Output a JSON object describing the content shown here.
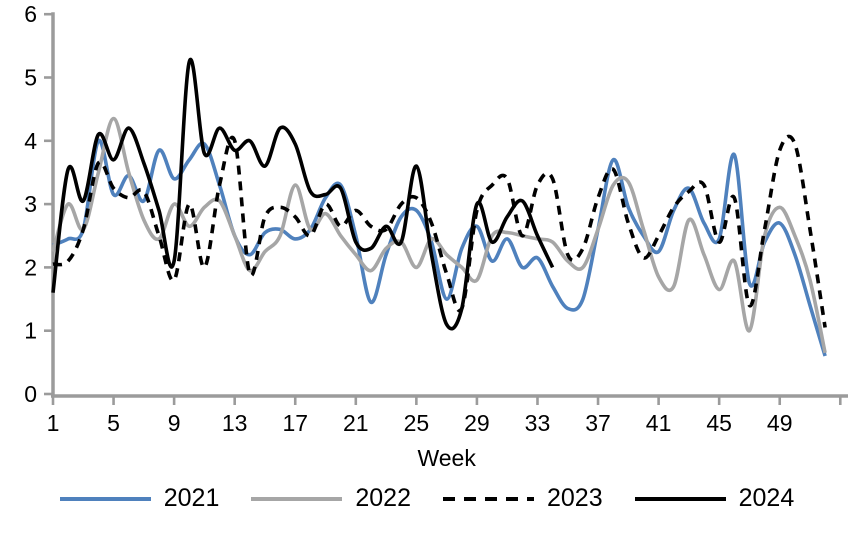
{
  "chart_data": {
    "type": "line",
    "title": "",
    "xlabel": "Week",
    "ylabel": "",
    "xlim": [
      1,
      52
    ],
    "ylim": [
      0,
      6
    ],
    "grid": false,
    "legend_position": "bottom",
    "y_ticks": [
      0,
      1,
      2,
      3,
      4,
      5,
      6
    ],
    "x_ticks": [
      1,
      5,
      9,
      13,
      17,
      21,
      25,
      29,
      33,
      37,
      41,
      45,
      49
    ],
    "x": [
      1,
      2,
      3,
      4,
      5,
      6,
      7,
      8,
      9,
      10,
      11,
      12,
      13,
      14,
      15,
      16,
      17,
      18,
      19,
      20,
      21,
      22,
      23,
      24,
      25,
      26,
      27,
      28,
      29,
      30,
      31,
      32,
      33,
      34,
      35,
      36,
      37,
      38,
      39,
      40,
      41,
      42,
      43,
      44,
      45,
      46,
      47,
      48,
      49,
      50,
      51,
      52
    ],
    "series": [
      {
        "name": "2021",
        "color": "#4F81BD",
        "style": "solid",
        "values": [
          2.35,
          2.45,
          2.6,
          4.0,
          3.15,
          3.45,
          3.05,
          3.85,
          3.4,
          3.7,
          3.95,
          3.3,
          2.5,
          2.2,
          2.55,
          2.6,
          2.45,
          2.6,
          3.1,
          3.3,
          2.5,
          1.45,
          2.2,
          2.8,
          2.9,
          2.4,
          1.5,
          2.3,
          2.65,
          2.1,
          2.45,
          2.0,
          2.15,
          1.7,
          1.35,
          1.5,
          2.6,
          3.7,
          2.95,
          2.5,
          2.25,
          2.9,
          3.25,
          2.7,
          2.45,
          3.78,
          1.75,
          2.4,
          2.7,
          2.2,
          1.4,
          0.6
        ]
      },
      {
        "name": "2022",
        "color": "#A6A6A6",
        "style": "solid",
        "values": [
          2.25,
          3.0,
          2.6,
          3.5,
          4.35,
          3.5,
          2.75,
          2.45,
          3.0,
          2.65,
          2.95,
          3.05,
          2.5,
          1.95,
          2.25,
          2.5,
          3.3,
          2.6,
          2.85,
          2.5,
          2.2,
          1.95,
          2.3,
          2.4,
          2.0,
          2.45,
          2.2,
          2.0,
          1.8,
          2.5,
          2.55,
          2.5,
          2.45,
          2.4,
          2.1,
          2.0,
          2.6,
          3.3,
          3.35,
          2.6,
          1.85,
          1.7,
          2.75,
          2.2,
          1.65,
          2.1,
          1.0,
          2.5,
          2.95,
          2.5,
          1.8,
          0.65
        ]
      },
      {
        "name": "2023",
        "color": "#000000",
        "style": "dashed",
        "values": [
          2.05,
          2.1,
          2.6,
          3.65,
          3.25,
          3.1,
          3.2,
          2.5,
          1.8,
          3.0,
          2.0,
          3.3,
          4.0,
          1.9,
          2.8,
          2.95,
          2.8,
          2.5,
          3.0,
          2.65,
          2.9,
          2.65,
          2.6,
          3.0,
          3.1,
          2.7,
          1.9,
          1.35,
          2.9,
          3.3,
          3.4,
          2.5,
          3.3,
          3.4,
          2.2,
          2.3,
          3.1,
          3.55,
          2.7,
          2.15,
          2.5,
          2.95,
          3.2,
          3.3,
          2.4,
          3.1,
          1.4,
          2.6,
          3.85,
          3.95,
          2.6,
          1.05
        ]
      },
      {
        "name": "2024",
        "color": "#000000",
        "style": "solid",
        "values": [
          1.6,
          3.55,
          3.05,
          4.1,
          3.7,
          4.2,
          3.65,
          2.9,
          2.1,
          5.25,
          3.8,
          4.2,
          3.85,
          4.0,
          3.6,
          4.2,
          3.95,
          3.2,
          3.15,
          3.25,
          2.4,
          2.3,
          2.65,
          2.4,
          3.6,
          2.2,
          1.1,
          1.35,
          3.0,
          2.4,
          2.8,
          3.05,
          2.5,
          2.0
        ]
      }
    ]
  },
  "style": {
    "axis_color": "#9B9B9B",
    "tick_label_color": "#000000",
    "line_width": 3.6
  }
}
